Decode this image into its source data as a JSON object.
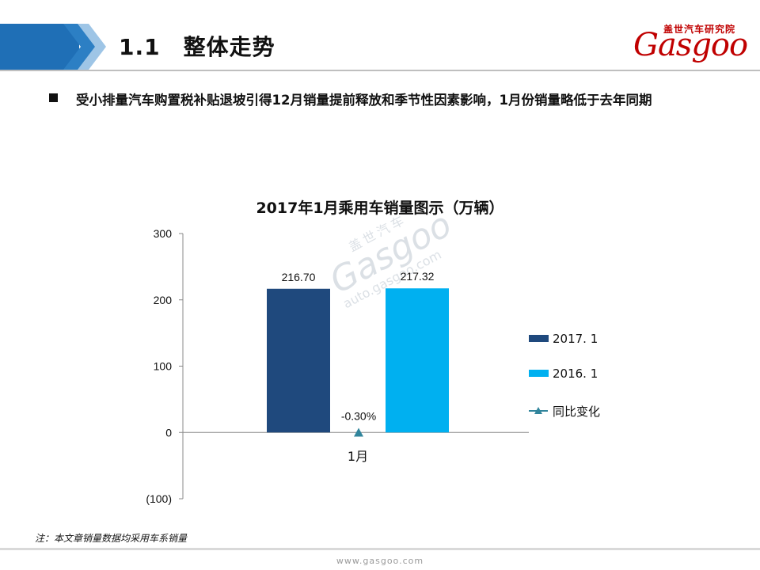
{
  "header": {
    "title": "1.1　整体走势",
    "logo_cn": "盖世汽车研究院",
    "logo_text": "Gasgoo"
  },
  "bullet": "受小排量汽车购置税补贴退坡引得12月销量提前释放和季节性因素影响，1月份销量略低于去年同期",
  "watermark": {
    "cn": "盖世汽车",
    "brand": "Gasgoo",
    "url": "auto.gasgoo.com"
  },
  "chart_data": {
    "type": "bar",
    "title": "2017年1月乘用车销量图示（万辆）",
    "categories": [
      "1月"
    ],
    "series": [
      {
        "name": "2017. 1",
        "values": [
          216.7
        ],
        "label": "216.70",
        "color": "#1f497d"
      },
      {
        "name": "2016. 1",
        "values": [
          217.32
        ],
        "label": "217.32",
        "color": "#00b0f0"
      },
      {
        "name": "同比变化",
        "values": [
          -0.3
        ],
        "label": "-0.30%",
        "color": "#31859c",
        "marker": "triangle"
      }
    ],
    "y_ticks": [
      "300",
      "200",
      "100",
      "0",
      "(100)"
    ],
    "ylim": [
      -100,
      300
    ],
    "legend_position": "right",
    "grid": false
  },
  "note": "注：本文章销量数据均采用车系销量",
  "footer": "www.gasgoo.com"
}
